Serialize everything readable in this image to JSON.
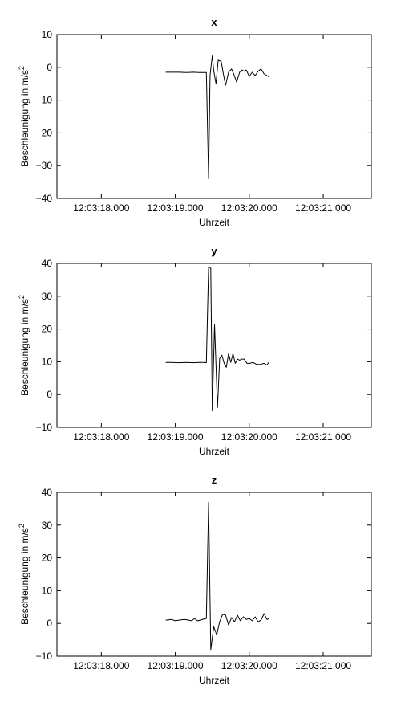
{
  "chart_data": [
    {
      "type": "line",
      "title": "x",
      "xlabel": "Uhrzeit",
      "ylabel": "Beschleunigung in m/s",
      "ylabel_superscript": "2",
      "ylim": [
        -40,
        10
      ],
      "yticks": [
        "10",
        "0",
        "−10",
        "−20",
        "−30",
        "−40"
      ],
      "xticks": [
        "12:03:18.000",
        "12:03:19.000",
        "12:03:20.000",
        "12:03:21.000"
      ],
      "xlim_seconds": [
        17.4,
        21.65
      ],
      "tick_seconds": [
        18,
        19,
        20,
        21
      ],
      "series": [
        {
          "color": "#000000",
          "x": [
            18.87,
            18.95,
            19.05,
            19.15,
            19.25,
            19.32,
            19.38,
            19.42,
            19.45,
            19.47,
            19.5,
            19.52,
            19.55,
            19.58,
            19.62,
            19.65,
            19.68,
            19.72,
            19.76,
            19.79,
            19.83,
            19.87,
            19.9,
            19.93,
            19.96,
            20.0,
            20.04,
            20.08,
            20.12,
            20.16,
            20.2,
            20.24,
            20.27
          ],
          "y": [
            -1.5,
            -1.5,
            -1.5,
            -1.6,
            -1.5,
            -1.6,
            -1.6,
            -1.6,
            -34,
            -2.5,
            3.5,
            -1.0,
            -5.0,
            2.2,
            1.8,
            -2.0,
            -5.5,
            -1.5,
            -0.5,
            -2.0,
            -4.5,
            -1.5,
            -0.8,
            -1.2,
            -0.8,
            -2.8,
            -1.5,
            -2.5,
            -1.2,
            -0.5,
            -2.0,
            -2.5,
            -3.0
          ]
        }
      ]
    },
    {
      "type": "line",
      "title": "y",
      "xlabel": "Uhrzeit",
      "ylabel": "Beschleunigung in m/s",
      "ylabel_superscript": "2",
      "ylim": [
        -10,
        40
      ],
      "yticks": [
        "40",
        "30",
        "20",
        "10",
        "0",
        "−10"
      ],
      "xticks": [
        "12:03:18.000",
        "12:03:19.000",
        "12:03:20.000",
        "12:03:21.000"
      ],
      "xlim_seconds": [
        17.4,
        21.65
      ],
      "tick_seconds": [
        18,
        19,
        20,
        21
      ],
      "series": [
        {
          "color": "#000000",
          "x": [
            18.87,
            18.95,
            19.05,
            19.15,
            19.25,
            19.32,
            19.38,
            19.42,
            19.45,
            19.48,
            19.5,
            19.53,
            19.57,
            19.6,
            19.63,
            19.66,
            19.69,
            19.72,
            19.75,
            19.78,
            19.81,
            19.84,
            19.87,
            19.9,
            19.93,
            19.97,
            20.01,
            20.05,
            20.1,
            20.15,
            20.2,
            20.24,
            20.27
          ],
          "y": [
            9.8,
            9.8,
            9.7,
            9.8,
            9.7,
            9.8,
            9.8,
            9.7,
            39,
            38.5,
            -5.0,
            21.5,
            -4.0,
            11.0,
            12.0,
            9.5,
            8.3,
            12.5,
            9.8,
            12.5,
            9.5,
            10.8,
            10.5,
            10.8,
            10.8,
            9.5,
            9.5,
            9.8,
            9.2,
            9.2,
            9.5,
            9.0,
            10.0
          ]
        }
      ]
    },
    {
      "type": "line",
      "title": "z",
      "xlabel": "Uhrzeit",
      "ylabel": "Beschleunigung in m/s",
      "ylabel_superscript": "2",
      "ylim": [
        -10,
        40
      ],
      "yticks": [
        "40",
        "30",
        "20",
        "10",
        "0",
        "−10"
      ],
      "xticks": [
        "12:03:18.000",
        "12:03:19.000",
        "12:03:20.000",
        "12:03:21.000"
      ],
      "xlim_seconds": [
        17.4,
        21.65
      ],
      "tick_seconds": [
        18,
        19,
        20,
        21
      ],
      "series": [
        {
          "color": "#000000",
          "x": [
            18.87,
            18.95,
            19.0,
            19.05,
            19.12,
            19.18,
            19.22,
            19.26,
            19.3,
            19.34,
            19.38,
            19.42,
            19.45,
            19.48,
            19.52,
            19.56,
            19.6,
            19.64,
            19.68,
            19.72,
            19.76,
            19.8,
            19.84,
            19.88,
            19.92,
            19.96,
            20.0,
            20.04,
            20.08,
            20.12,
            20.16,
            20.2,
            20.24,
            20.27
          ],
          "y": [
            1.0,
            1.2,
            0.8,
            1.0,
            1.2,
            1.0,
            0.8,
            1.5,
            0.8,
            1.0,
            1.3,
            1.5,
            37,
            -8.0,
            -1.0,
            -3.5,
            0.5,
            2.8,
            2.5,
            -0.5,
            1.8,
            0.5,
            2.5,
            0.8,
            2.0,
            1.2,
            1.5,
            0.8,
            2.0,
            0.5,
            1.0,
            3.0,
            1.2,
            1.5
          ]
        }
      ]
    }
  ]
}
